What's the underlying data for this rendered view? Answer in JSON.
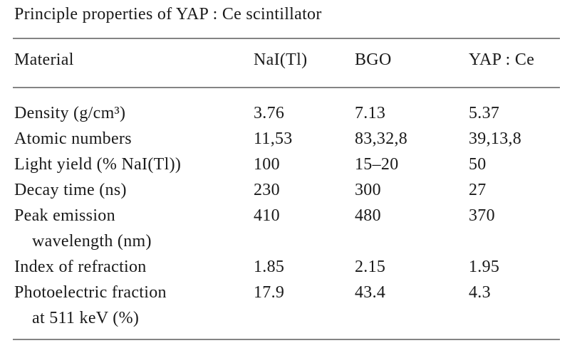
{
  "title": "Principle properties of YAP : Ce scintillator",
  "table": {
    "columns": [
      "Material",
      "NaI(Tl)",
      "BGO",
      "YAP : Ce"
    ],
    "rows": [
      {
        "label": "Density (g/cm³)",
        "values": [
          "3.76",
          "7.13",
          "5.37"
        ]
      },
      {
        "label": "Atomic numbers",
        "values": [
          "11,53",
          "83,32,8",
          "39,13,8"
        ]
      },
      {
        "label": "Light yield (% NaI(Tl))",
        "values": [
          "100",
          "15–20",
          "50"
        ]
      },
      {
        "label": "Decay time (ns)",
        "values": [
          "230",
          "300",
          "27"
        ]
      },
      {
        "label": "Peak emission",
        "label_line2": "wavelength (nm)",
        "values": [
          "410",
          "480",
          "370"
        ]
      },
      {
        "label": "Index of refraction",
        "values": [
          "1.85",
          "2.15",
          "1.95"
        ]
      },
      {
        "label": "Photoelectric fraction",
        "label_line2": "at 511 keV (%)",
        "values": [
          "17.9",
          "43.4",
          "4.3"
        ]
      }
    ]
  },
  "colors": {
    "background": "#ffffff",
    "text": "#1a1a1a",
    "rule": "#848484"
  }
}
